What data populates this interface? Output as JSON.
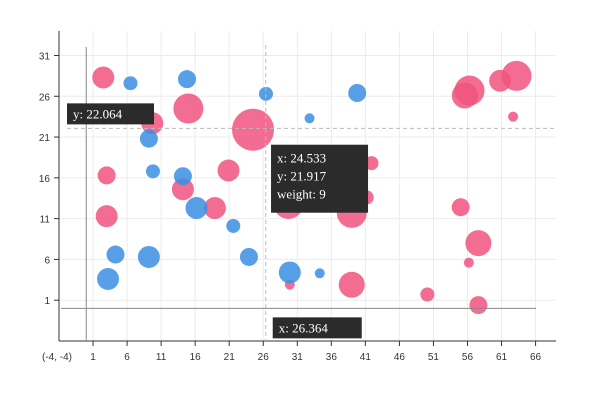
{
  "chart_data": {
    "type": "scatter",
    "title": "",
    "xlabel": "",
    "ylabel": "",
    "xlim": [
      -4,
      69
    ],
    "ylim": [
      -4,
      34
    ],
    "x_ticks": [
      1,
      6,
      11,
      16,
      21,
      26,
      31,
      36,
      41,
      46,
      51,
      56,
      61,
      66
    ],
    "y_ticks": [
      1,
      6,
      11,
      16,
      21,
      26,
      31
    ],
    "origin_label": "(-4, -4)",
    "grid": true,
    "legend": "none",
    "colors": {
      "pink": "#f0547e",
      "blue": "#3a8fe3"
    },
    "series": [
      {
        "color": "pink",
        "points": [
          {
            "x": 2.5,
            "y": 28.3,
            "w": 4
          },
          {
            "x": 9.7,
            "y": 22.7,
            "w": 4
          },
          {
            "x": 15.0,
            "y": 24.5,
            "w": 6
          },
          {
            "x": 24.5,
            "y": 21.9,
            "w": 9
          },
          {
            "x": 3.0,
            "y": 16.3,
            "w": 3
          },
          {
            "x": 3.0,
            "y": 11.3,
            "w": 4
          },
          {
            "x": 14.2,
            "y": 14.6,
            "w": 4
          },
          {
            "x": 18.9,
            "y": 12.3,
            "w": 4
          },
          {
            "x": 20.9,
            "y": 16.9,
            "w": 4
          },
          {
            "x": 29.7,
            "y": 12.8,
            "w": 6
          },
          {
            "x": 29.9,
            "y": 2.9,
            "w": 1
          },
          {
            "x": 39.0,
            "y": 11.7,
            "w": 6
          },
          {
            "x": 39.0,
            "y": 2.9,
            "w": 5
          },
          {
            "x": 41.9,
            "y": 17.8,
            "w": 2
          },
          {
            "x": 41.2,
            "y": 13.6,
            "w": 2
          },
          {
            "x": 50.1,
            "y": 1.7,
            "w": 2
          },
          {
            "x": 55.0,
            "y": 12.4,
            "w": 3
          },
          {
            "x": 55.6,
            "y": 26.1,
            "w": 5
          },
          {
            "x": 56.3,
            "y": 26.7,
            "w": 6
          },
          {
            "x": 56.2,
            "y": 5.6,
            "w": 1
          },
          {
            "x": 57.6,
            "y": 8.0,
            "w": 5
          },
          {
            "x": 57.6,
            "y": 0.4,
            "w": 3
          },
          {
            "x": 60.8,
            "y": 27.9,
            "w": 4
          },
          {
            "x": 63.2,
            "y": 28.5,
            "w": 6
          },
          {
            "x": 62.7,
            "y": 23.5,
            "w": 1
          }
        ]
      },
      {
        "color": "blue",
        "points": [
          {
            "x": 6.5,
            "y": 27.6,
            "w": 2
          },
          {
            "x": 14.8,
            "y": 28.1,
            "w": 3
          },
          {
            "x": 9.2,
            "y": 20.8,
            "w": 3
          },
          {
            "x": 9.8,
            "y": 16.8,
            "w": 2
          },
          {
            "x": 14.2,
            "y": 16.2,
            "w": 3
          },
          {
            "x": 16.2,
            "y": 12.3,
            "w": 4
          },
          {
            "x": 21.6,
            "y": 10.1,
            "w": 2
          },
          {
            "x": 4.3,
            "y": 6.6,
            "w": 3
          },
          {
            "x": 3.2,
            "y": 3.6,
            "w": 4
          },
          {
            "x": 9.2,
            "y": 6.3,
            "w": 4
          },
          {
            "x": 23.9,
            "y": 6.3,
            "w": 3
          },
          {
            "x": 26.4,
            "y": 26.3,
            "w": 2
          },
          {
            "x": 29.9,
            "y": 4.4,
            "w": 4
          },
          {
            "x": 32.8,
            "y": 23.3,
            "w": 1
          },
          {
            "x": 34.3,
            "y": 4.3,
            "w": 1
          },
          {
            "x": 39.8,
            "y": 26.4,
            "w": 3
          }
        ]
      }
    ],
    "crosshair": {
      "x": 26.364,
      "y": 22.064
    },
    "axis_labels": {
      "x": "x: 26.364",
      "y": "y: 22.064"
    },
    "tooltip": {
      "x": "x: 24.533",
      "y": "y: 21.917",
      "weight": "weight: 9"
    }
  }
}
